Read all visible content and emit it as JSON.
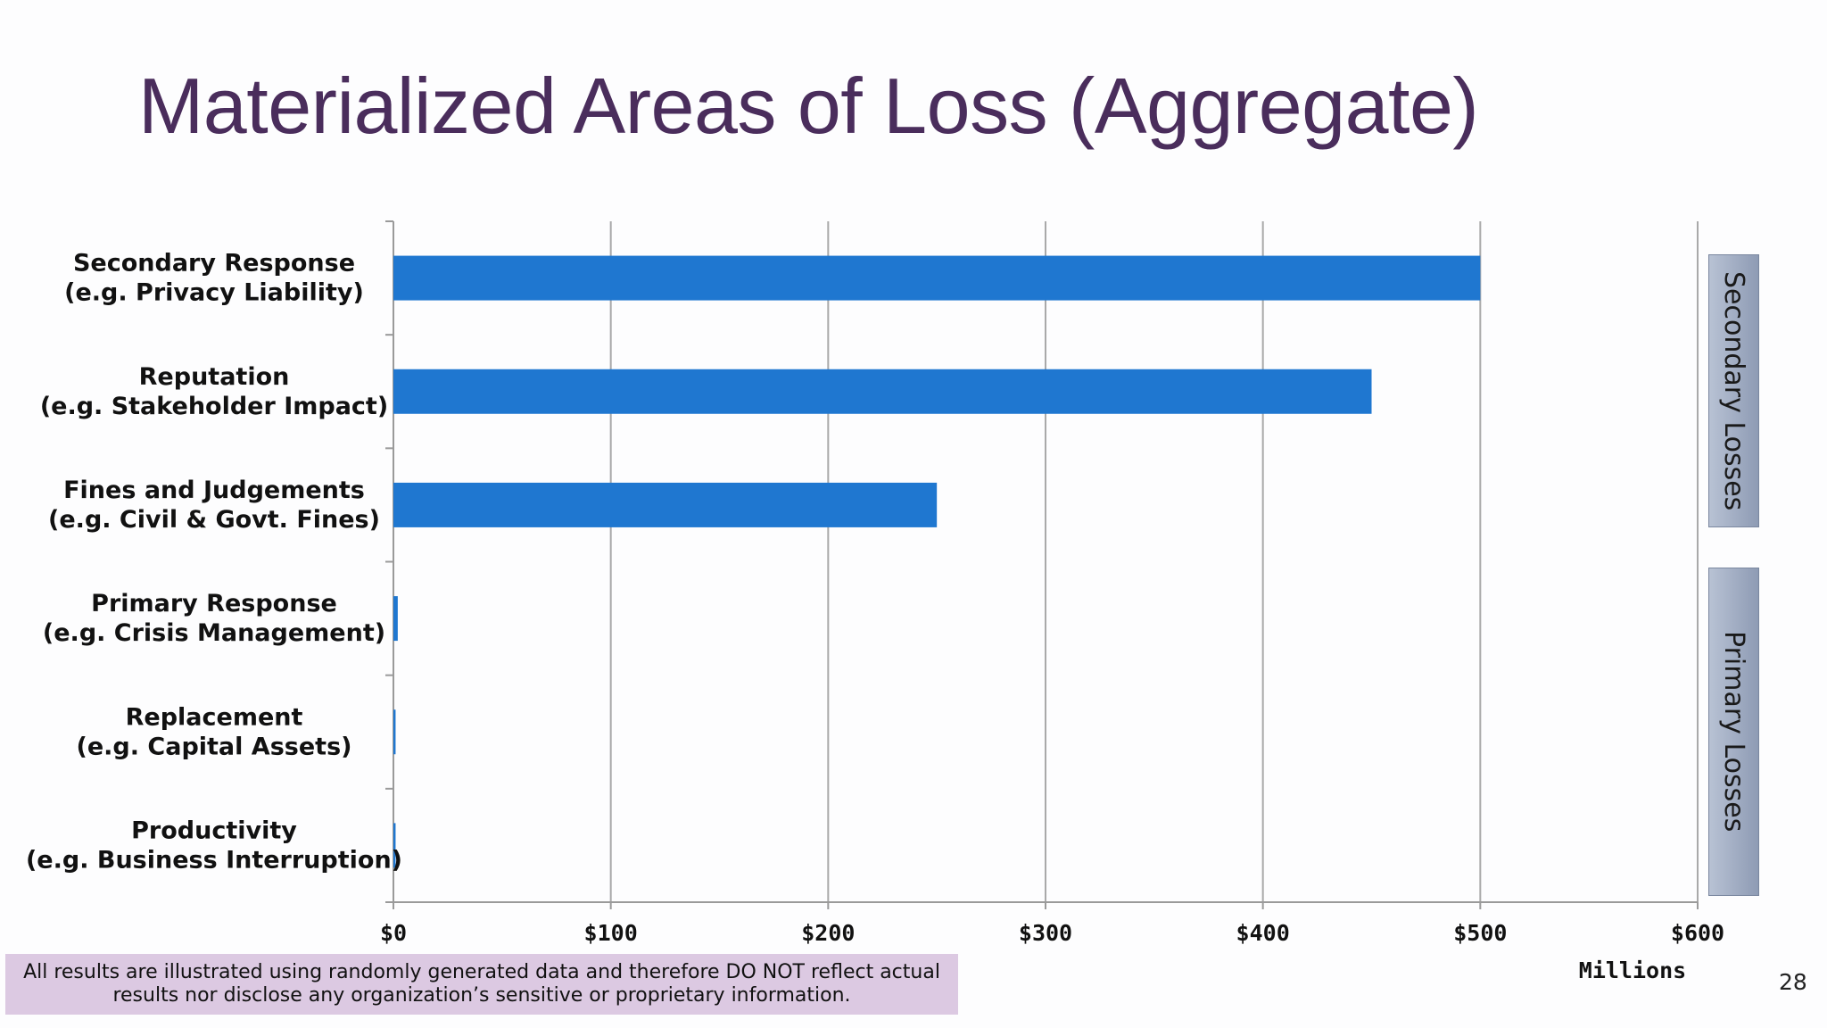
{
  "slide": {
    "title": "Materialized Areas of Loss (Aggregate)",
    "disclaimer_line1": "All results are illustrated using randomly generated data and therefore DO NOT reflect actual",
    "disclaimer_line2": "results nor disclose any organization’s sensitive or proprietary information.",
    "page_number": "28"
  },
  "side_labels": {
    "secondary": "Secondary Losses",
    "primary": "Primary Losses"
  },
  "colors": {
    "bar": "#1f77d0",
    "title": "#4a2d5c",
    "disclaimer_bg": "#dcc9e2"
  },
  "chart_data": {
    "type": "bar",
    "orientation": "horizontal",
    "title": "",
    "xlabel": "Millions",
    "ylabel": "",
    "xlim": [
      0,
      600
    ],
    "grid": true,
    "categories": [
      [
        "Secondary Response",
        "(e.g. Privacy Liability)"
      ],
      [
        "Reputation",
        "(e.g. Stakeholder Impact)"
      ],
      [
        "Fines and Judgements",
        "(e.g. Civil & Govt. Fines)"
      ],
      [
        "Primary Response",
        "(e.g. Crisis Management)"
      ],
      [
        "Replacement",
        "(e.g. Capital Assets)"
      ],
      [
        "Productivity",
        "(e.g. Business Interruption)"
      ]
    ],
    "values": [
      500,
      450,
      250,
      2,
      1,
      1
    ],
    "ticks": [
      0,
      100,
      200,
      300,
      400,
      500,
      600
    ],
    "tick_labels": [
      "$0",
      "$100",
      "$200",
      "$300",
      "$400",
      "$500",
      "$600"
    ]
  }
}
